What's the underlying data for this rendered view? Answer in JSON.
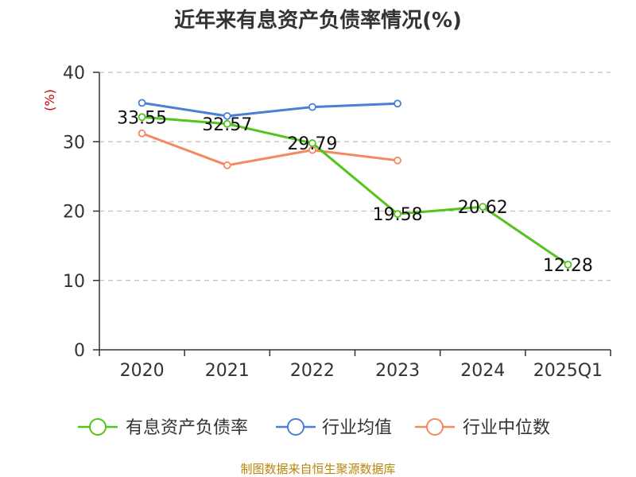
{
  "chart_data": {
    "type": "line",
    "title": "近年来有息资产负债率情况(%)",
    "ylabel": "(%)",
    "xlabel": "",
    "categories": [
      "2020",
      "2021",
      "2022",
      "2023",
      "2024",
      "2025Q1"
    ],
    "ylim": [
      0,
      40
    ],
    "yticks": [
      0,
      10,
      20,
      30,
      40
    ],
    "grid": true,
    "legend_position": "bottom",
    "series": [
      {
        "name": "有息资产负债率",
        "color": "#52c41a",
        "values": [
          33.55,
          32.57,
          29.79,
          19.58,
          20.62,
          12.28
        ],
        "labels": [
          "33.55",
          "32.57",
          "29.79",
          "19.58",
          "20.62",
          "12.28"
        ]
      },
      {
        "name": "行业均值",
        "color": "#4a7fd6",
        "values": [
          35.6,
          33.7,
          35.0,
          35.5,
          null,
          null
        ]
      },
      {
        "name": "行业中位数",
        "color": "#f4895f",
        "values": [
          31.2,
          26.6,
          28.8,
          27.3,
          null,
          null
        ]
      }
    ]
  },
  "source": "制图数据来自恒生聚源数据库"
}
